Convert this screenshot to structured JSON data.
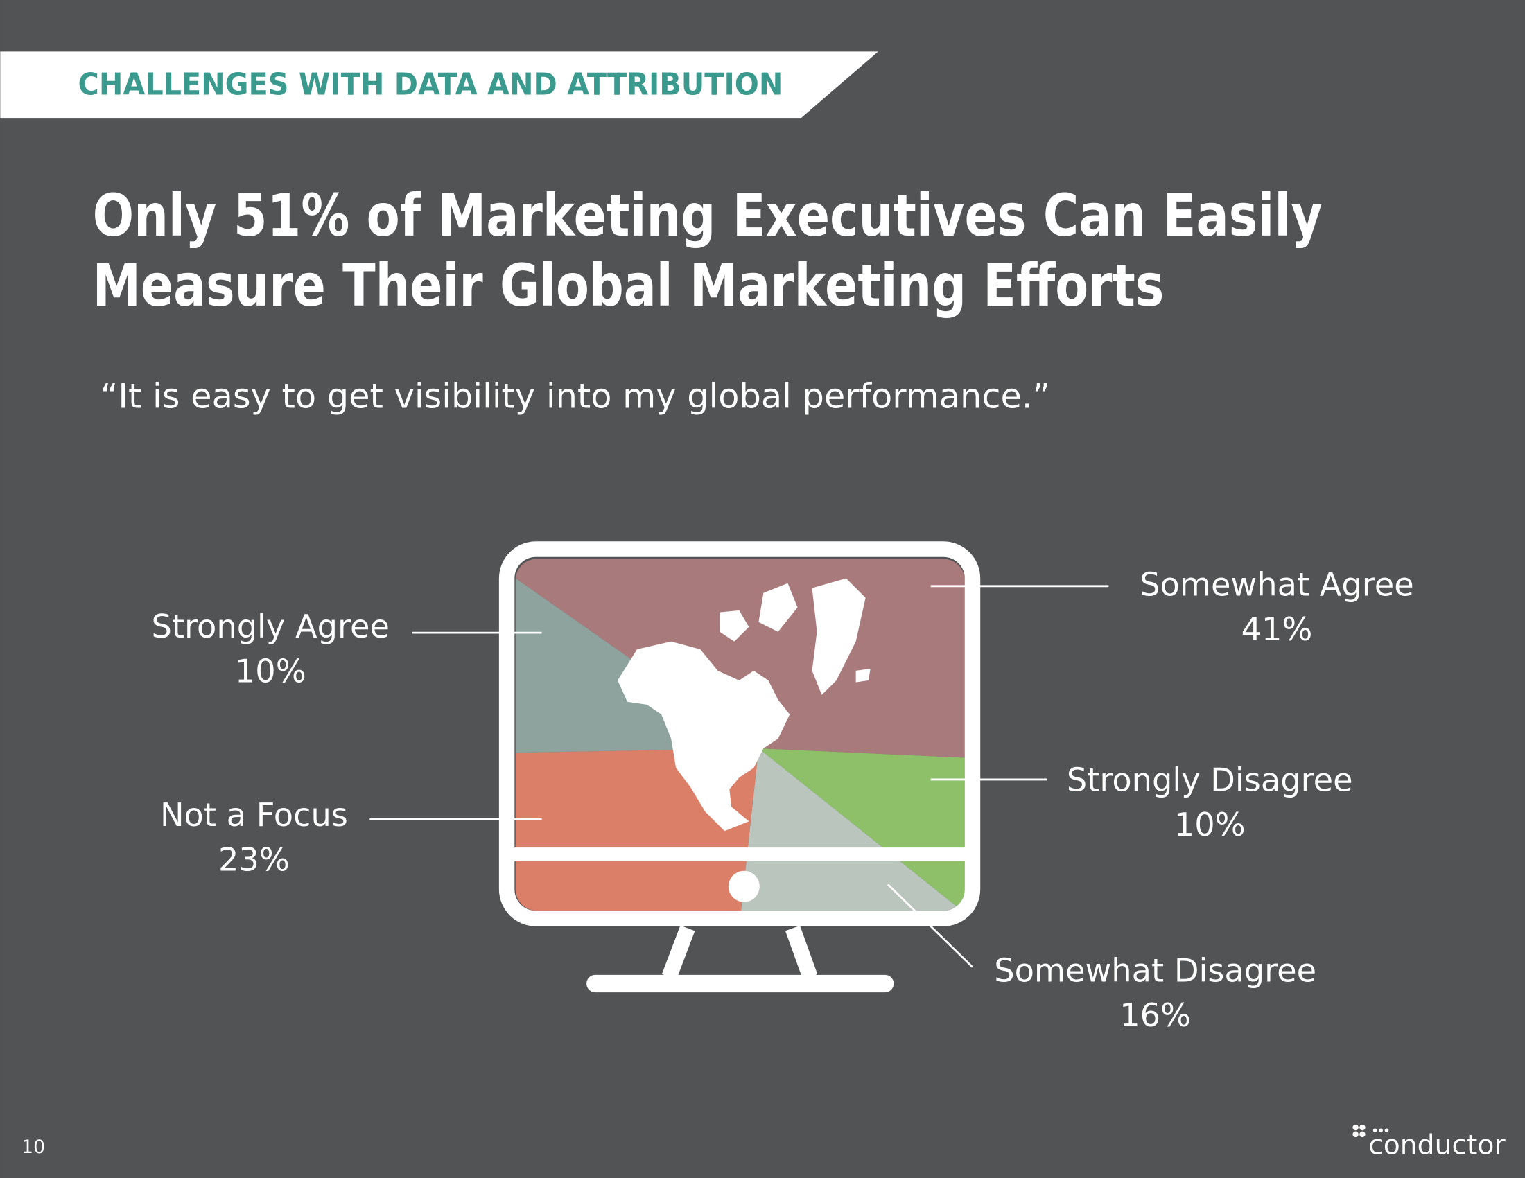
{
  "header": {
    "section": "CHALLENGES WITH DATA AND ATTRIBUTION",
    "title_lines": [
      "Only 51% of Marketing Executives Can Easily",
      "Measure Their Global Marketing Efforts"
    ],
    "subtitle": "“It is easy to get visibility into my global performance.”"
  },
  "chart_data": {
    "type": "pie",
    "categories": [
      "Somewhat Agree",
      "Strongly Disagree",
      "Somewhat Disagree",
      "Not a Focus",
      "Strongly Agree"
    ],
    "values": [
      41,
      10,
      16,
      23,
      10
    ],
    "value_labels": [
      "41%",
      "10%",
      "16%",
      "23%",
      "10%"
    ],
    "colors": [
      "#a97a7b",
      "#8ec06a",
      "#bac5bd",
      "#db7f68",
      "#8ea39d"
    ]
  },
  "footer": {
    "page_number": "10",
    "logo": "conductor"
  }
}
